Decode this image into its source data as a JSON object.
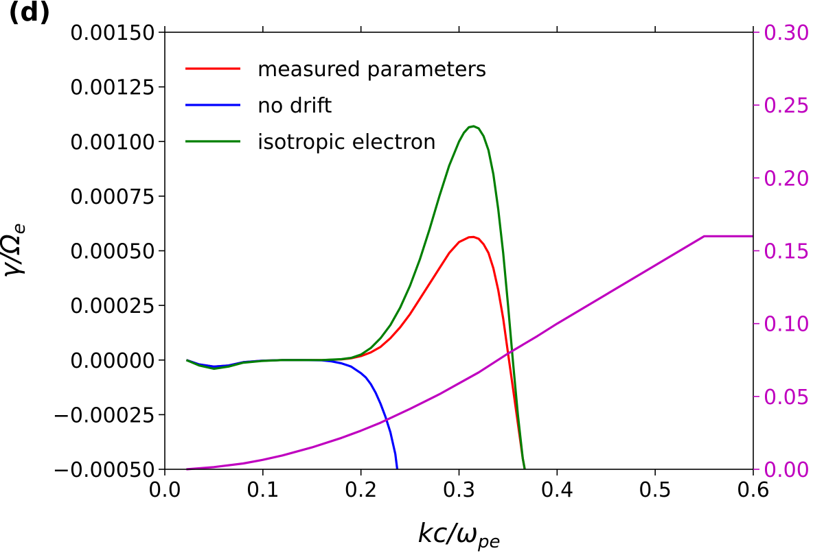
{
  "panel_label": "(d)",
  "chart_data": {
    "type": "line",
    "title": "",
    "xlabel": "kc/ωpe",
    "xlabel_parts": {
      "base": "kc/ω",
      "sub": "pe"
    },
    "ylabel": "γ/Ωe",
    "ylabel_parts": {
      "base": "γ/Ω",
      "sub": "e"
    },
    "xlim": [
      0.0,
      0.6
    ],
    "ylim": [
      -0.0005,
      0.0015
    ],
    "ylim_right": [
      0.0,
      0.3
    ],
    "x_ticks": [
      0.0,
      0.1,
      0.2,
      0.3,
      0.4,
      0.5,
      0.6
    ],
    "x_tick_labels": [
      "0.0",
      "0.1",
      "0.2",
      "0.3",
      "0.4",
      "0.5",
      "0.6"
    ],
    "y_ticks": [
      -0.0005,
      -0.00025,
      0.0,
      0.00025,
      0.0005,
      0.00075,
      0.001,
      0.00125,
      0.0015
    ],
    "y_tick_labels": [
      "−0.00050",
      "−0.00025",
      "0.00000",
      "0.00025",
      "0.00050",
      "0.00075",
      "0.00100",
      "0.00125",
      "0.00150"
    ],
    "y_ticks_right": [
      0.0,
      0.05,
      0.1,
      0.15,
      0.2,
      0.25,
      0.3
    ],
    "y_tick_labels_right": [
      "0.00",
      "0.05",
      "0.10",
      "0.15",
      "0.20",
      "0.25",
      "0.30"
    ],
    "grid": false,
    "legend_position": "top-left",
    "series": [
      {
        "name": "measured parameters",
        "color": "#ff0000",
        "axis": "left",
        "x": [
          0.022,
          0.035,
          0.05,
          0.065,
          0.08,
          0.1,
          0.12,
          0.14,
          0.16,
          0.18,
          0.19,
          0.2,
          0.21,
          0.22,
          0.23,
          0.24,
          0.25,
          0.26,
          0.27,
          0.28,
          0.29,
          0.3,
          0.31,
          0.315,
          0.32,
          0.325,
          0.33,
          0.335,
          0.34,
          0.345,
          0.35,
          0.355,
          0.36,
          0.365,
          0.367
        ],
        "y": [
          0.0,
          -2e-05,
          -3e-05,
          -2.5e-05,
          -1e-05,
          -3e-06,
          0.0,
          0.0,
          0.0,
          3e-06,
          8e-06,
          1.8e-05,
          3.5e-05,
          6e-05,
          0.0001,
          0.00015,
          0.00021,
          0.00028,
          0.00035,
          0.00042,
          0.00049,
          0.00054,
          0.000562,
          0.000563,
          0.000555,
          0.00053,
          0.00049,
          0.00042,
          0.00032,
          0.00019,
          3e-05,
          -0.00013,
          -0.00029,
          -0.00045,
          -0.0005
        ]
      },
      {
        "name": "no drift",
        "color": "#0000ff",
        "axis": "left",
        "x": [
          0.022,
          0.035,
          0.05,
          0.065,
          0.08,
          0.1,
          0.12,
          0.14,
          0.16,
          0.17,
          0.18,
          0.19,
          0.2,
          0.205,
          0.21,
          0.215,
          0.22,
          0.225,
          0.23,
          0.235,
          0.237
        ],
        "y": [
          0.0,
          -2e-05,
          -3e-05,
          -2.5e-05,
          -1e-05,
          -3e-06,
          0.0,
          0.0,
          -1e-06,
          -6e-06,
          -1.5e-05,
          -3e-05,
          -6e-05,
          -8e-05,
          -0.00011,
          -0.00015,
          -0.0002,
          -0.00026,
          -0.00033,
          -0.00043,
          -0.0005
        ]
      },
      {
        "name": "isotropic electron",
        "color": "#007f00",
        "axis": "left",
        "x": [
          0.022,
          0.035,
          0.05,
          0.065,
          0.08,
          0.1,
          0.12,
          0.14,
          0.16,
          0.18,
          0.19,
          0.2,
          0.21,
          0.22,
          0.23,
          0.24,
          0.25,
          0.26,
          0.27,
          0.28,
          0.29,
          0.3,
          0.305,
          0.31,
          0.315,
          0.32,
          0.325,
          0.33,
          0.335,
          0.34,
          0.345,
          0.35,
          0.355,
          0.36,
          0.365,
          0.367
        ],
        "y": [
          0.0,
          -2.5e-05,
          -4e-05,
          -3e-05,
          -1.2e-05,
          -4e-06,
          0.0,
          0.0,
          0.0,
          4e-06,
          1e-05,
          2.5e-05,
          5.5e-05,
          0.0001,
          0.00016,
          0.00024,
          0.00034,
          0.00046,
          0.0006,
          0.00075,
          0.00089,
          0.001,
          0.00104,
          0.001065,
          0.00107,
          0.00106,
          0.001025,
          0.00096,
          0.00085,
          0.00069,
          0.00049,
          0.00025,
          -1e-05,
          -0.00025,
          -0.00045,
          -0.0005
        ]
      },
      {
        "name": "",
        "color": "#bf00bf",
        "axis": "right",
        "x": [
          0.022,
          0.05,
          0.08,
          0.1,
          0.12,
          0.15,
          0.18,
          0.2,
          0.22,
          0.25,
          0.28,
          0.3,
          0.32,
          0.35,
          0.36,
          0.38,
          0.4,
          0.45,
          0.5,
          0.55,
          0.6
        ],
        "y": [
          0.0,
          0.0015,
          0.004,
          0.0065,
          0.0095,
          0.015,
          0.0215,
          0.0265,
          0.032,
          0.0415,
          0.0515,
          0.059,
          0.0665,
          0.0795,
          0.0835,
          0.0915,
          0.1,
          0.12,
          0.14,
          0.16,
          0.16
        ]
      }
    ]
  }
}
